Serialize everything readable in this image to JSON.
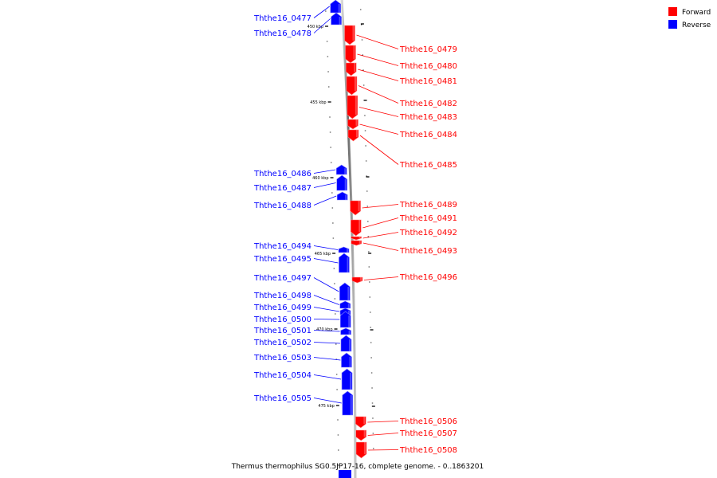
{
  "caption": "Thermus thermophilus SG0.5JP17-16, complete genome. - 0..1863201",
  "legend": [
    {
      "label": "Forward",
      "color": "#ff0000"
    },
    {
      "label": "Reverse",
      "color": "#0000ff"
    }
  ],
  "ticks": [
    "450 kbp",
    "455 kbp",
    "460 kbp",
    "465 kbp",
    "470 kbp",
    "475 kbp"
  ],
  "genes": [
    {
      "name": "Ththe16_0477",
      "strand": "reverse"
    },
    {
      "name": "Ththe16_0478",
      "strand": "reverse"
    },
    {
      "name": "Ththe16_0479",
      "strand": "forward"
    },
    {
      "name": "Ththe16_0480",
      "strand": "forward"
    },
    {
      "name": "Ththe16_0481",
      "strand": "forward"
    },
    {
      "name": "Ththe16_0482",
      "strand": "forward"
    },
    {
      "name": "Ththe16_0483",
      "strand": "forward"
    },
    {
      "name": "Ththe16_0484",
      "strand": "forward"
    },
    {
      "name": "Ththe16_0485",
      "strand": "forward"
    },
    {
      "name": "Ththe16_0486",
      "strand": "reverse"
    },
    {
      "name": "Ththe16_0487",
      "strand": "reverse"
    },
    {
      "name": "Ththe16_0488",
      "strand": "reverse"
    },
    {
      "name": "Ththe16_0489",
      "strand": "forward"
    },
    {
      "name": "Ththe16_0491",
      "strand": "forward"
    },
    {
      "name": "Ththe16_0492",
      "strand": "forward"
    },
    {
      "name": "Ththe16_0493",
      "strand": "forward"
    },
    {
      "name": "Ththe16_0494",
      "strand": "reverse"
    },
    {
      "name": "Ththe16_0495",
      "strand": "reverse"
    },
    {
      "name": "Ththe16_0496",
      "strand": "forward"
    },
    {
      "name": "Ththe16_0497",
      "strand": "reverse"
    },
    {
      "name": "Ththe16_0498",
      "strand": "reverse"
    },
    {
      "name": "Ththe16_0499",
      "strand": "reverse"
    },
    {
      "name": "Ththe16_0500",
      "strand": "reverse"
    },
    {
      "name": "Ththe16_0501",
      "strand": "reverse"
    },
    {
      "name": "Ththe16_0502",
      "strand": "reverse"
    },
    {
      "name": "Ththe16_0503",
      "strand": "reverse"
    },
    {
      "name": "Ththe16_0504",
      "strand": "reverse"
    },
    {
      "name": "Ththe16_0505",
      "strand": "reverse"
    },
    {
      "name": "Ththe16_0506",
      "strand": "forward"
    },
    {
      "name": "Ththe16_0507",
      "strand": "forward"
    },
    {
      "name": "Ththe16_0508",
      "strand": "forward"
    }
  ]
}
